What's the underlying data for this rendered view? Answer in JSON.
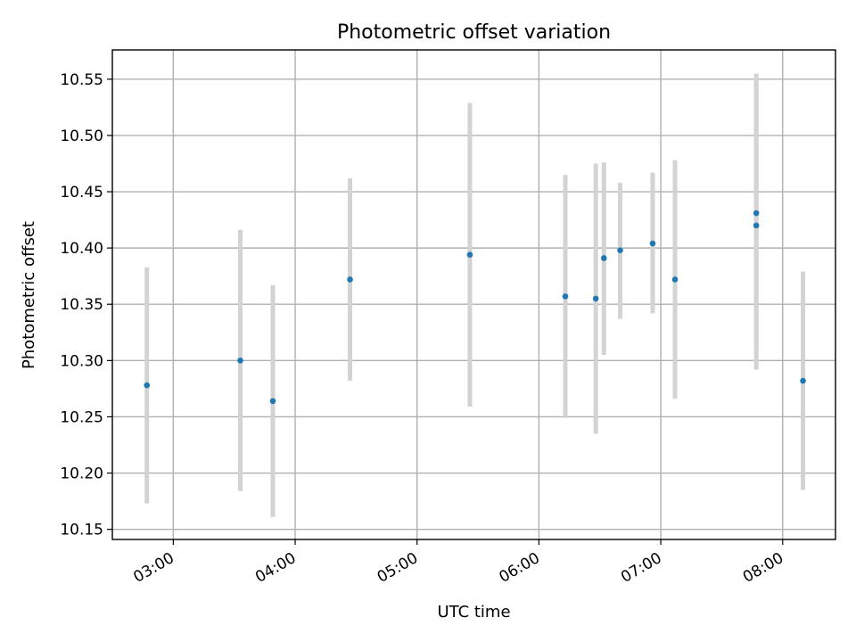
{
  "chart_data": {
    "type": "scatter",
    "title": "Photometric offset variation",
    "xlabel": "UTC time",
    "ylabel": "Photometric offset",
    "x_ticks": [
      "03:00",
      "04:00",
      "05:00",
      "06:00",
      "07:00",
      "08:00"
    ],
    "y_ticks": [
      "10.15",
      "10.20",
      "10.25",
      "10.30",
      "10.35",
      "10.40",
      "10.45",
      "10.50",
      "10.55"
    ],
    "xlim": [
      "02:30",
      "08:26"
    ],
    "ylim": [
      10.141,
      10.576
    ],
    "grid": true,
    "x_tick_rotation": "30°",
    "colors": {
      "point": "#1f77b4",
      "errorbar": "#d3d3d3",
      "grid": "#b0b0b0"
    },
    "points": [
      {
        "x": "02:47",
        "y": 10.278,
        "ylow": 10.173,
        "yhigh": 10.383
      },
      {
        "x": "03:33",
        "y": 10.3,
        "ylow": 10.184,
        "yhigh": 10.416
      },
      {
        "x": "03:49",
        "y": 10.264,
        "ylow": 10.161,
        "yhigh": 10.367
      },
      {
        "x": "04:27",
        "y": 10.372,
        "ylow": 10.282,
        "yhigh": 10.462
      },
      {
        "x": "05:26",
        "y": 10.394,
        "ylow": 10.259,
        "yhigh": 10.529
      },
      {
        "x": "06:13",
        "y": 10.357,
        "ylow": 10.249,
        "yhigh": 10.465
      },
      {
        "x": "06:28",
        "y": 10.355,
        "ylow": 10.235,
        "yhigh": 10.475
      },
      {
        "x": "06:32",
        "y": 10.391,
        "ylow": 10.305,
        "yhigh": 10.476
      },
      {
        "x": "06:40",
        "y": 10.398,
        "ylow": 10.337,
        "yhigh": 10.458
      },
      {
        "x": "06:56",
        "y": 10.404,
        "ylow": 10.342,
        "yhigh": 10.467
      },
      {
        "x": "07:07",
        "y": 10.372,
        "ylow": 10.266,
        "yhigh": 10.478
      },
      {
        "x": "07:47",
        "y": 10.431,
        "ylow": 10.307,
        "yhigh": 10.555
      },
      {
        "x": "07:47",
        "y": 10.42,
        "ylow": 10.292,
        "yhigh": 10.548
      },
      {
        "x": "08:10",
        "y": 10.282,
        "ylow": 10.185,
        "yhigh": 10.379
      }
    ]
  }
}
